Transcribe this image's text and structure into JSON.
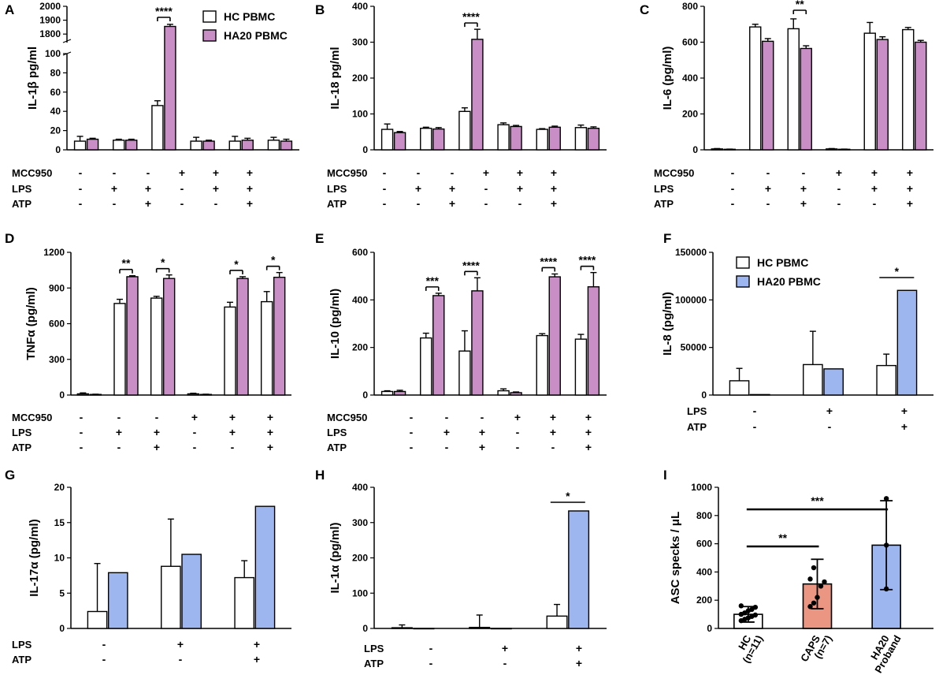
{
  "colors": {
    "hc_fill": "#ffffff",
    "ha20_purple": "#c98ec6",
    "ha20_blue": "#9eb6f0",
    "caps_fill": "#ea9682",
    "stroke": "#000000"
  },
  "chart_data": [
    {
      "id": "A",
      "type": "bar",
      "ylabel": "IL-1β pg/ml",
      "ha20_color": "purple",
      "ylim": [
        0,
        2000
      ],
      "broken_axis": {
        "lower": [
          0,
          100
        ],
        "upper": [
          1750,
          2000
        ]
      },
      "yticks": [
        "0",
        "20",
        "40",
        "60",
        "80",
        "100",
        "1800",
        "1900",
        "2000"
      ],
      "legend": [
        "HC PBMC",
        "HA20 PBMC"
      ],
      "categories": [
        "1",
        "2",
        "3",
        "4",
        "5",
        "6"
      ],
      "series": [
        {
          "name": "HC PBMC",
          "values": [
            9,
            10,
            46,
            9,
            9,
            10
          ],
          "errors": [
            5,
            1,
            5,
            4,
            5,
            3
          ]
        },
        {
          "name": "HA20 PBMC",
          "values": [
            11,
            10,
            1855,
            9,
            10,
            9
          ],
          "errors": [
            1,
            1,
            15,
            1,
            2,
            2
          ]
        }
      ],
      "conditions": [
        {
          "label": "MCC950",
          "marks": [
            "-",
            "-",
            "-",
            "+",
            "+",
            "+"
          ]
        },
        {
          "label": "LPS",
          "marks": [
            "-",
            "+",
            "+",
            "-",
            "+",
            "+"
          ]
        },
        {
          "label": "ATP",
          "marks": [
            "-",
            "-",
            "+",
            "-",
            "-",
            "+"
          ]
        }
      ],
      "significance": [
        {
          "group": 3,
          "label": "****"
        }
      ]
    },
    {
      "id": "B",
      "type": "bar",
      "ylabel": "IL-18 pg/ml",
      "ha20_color": "purple",
      "ylim": [
        0,
        400
      ],
      "yticks": [
        "0",
        "100",
        "200",
        "300",
        "400"
      ],
      "categories": [
        "1",
        "2",
        "3",
        "4",
        "5",
        "6"
      ],
      "series": [
        {
          "name": "HC PBMC",
          "values": [
            57,
            60,
            107,
            70,
            57,
            62
          ],
          "errors": [
            15,
            3,
            10,
            5,
            2,
            7
          ]
        },
        {
          "name": "HA20 PBMC",
          "values": [
            48,
            58,
            308,
            65,
            63,
            60
          ],
          "errors": [
            3,
            4,
            28,
            3,
            3,
            4
          ]
        }
      ],
      "conditions": [
        {
          "label": "MCC950",
          "marks": [
            "-",
            "-",
            "-",
            "+",
            "+",
            "+"
          ]
        },
        {
          "label": "LPS",
          "marks": [
            "-",
            "+",
            "+",
            "-",
            "+",
            "+"
          ]
        },
        {
          "label": "ATP",
          "marks": [
            "-",
            "-",
            "+",
            "-",
            "-",
            "+"
          ]
        }
      ],
      "significance": [
        {
          "group": 3,
          "label": "****"
        }
      ]
    },
    {
      "id": "C",
      "type": "bar",
      "ylabel": "IL-6 (pg/ml)",
      "ha20_color": "purple",
      "ylim": [
        0,
        800
      ],
      "yticks": [
        "0",
        "200",
        "400",
        "600",
        "800"
      ],
      "categories": [
        "1",
        "2",
        "3",
        "4",
        "5",
        "6"
      ],
      "series": [
        {
          "name": "HC PBMC",
          "values": [
            5,
            685,
            675,
            5,
            650,
            670
          ],
          "errors": [
            2,
            15,
            55,
            2,
            60,
            12
          ]
        },
        {
          "name": "HA20 PBMC",
          "values": [
            3,
            605,
            565,
            3,
            615,
            600
          ],
          "errors": [
            1,
            15,
            15,
            1,
            15,
            10
          ]
        }
      ],
      "conditions": [
        {
          "label": "MCC950",
          "marks": [
            "-",
            "-",
            "-",
            "+",
            "+",
            "+"
          ]
        },
        {
          "label": "LPS",
          "marks": [
            "-",
            "+",
            "+",
            "-",
            "+",
            "+"
          ]
        },
        {
          "label": "ATP",
          "marks": [
            "-",
            "-",
            "+",
            "-",
            "-",
            "+"
          ]
        }
      ],
      "significance": [
        {
          "group": 3,
          "label": "**"
        }
      ]
    },
    {
      "id": "D",
      "type": "bar",
      "ylabel": "TNFα (pg/ml)",
      "ha20_color": "purple",
      "ylim": [
        0,
        1200
      ],
      "yticks": [
        "0",
        "300",
        "600",
        "900",
        "1200"
      ],
      "categories": [
        "1",
        "2",
        "3",
        "4",
        "5",
        "6"
      ],
      "series": [
        {
          "name": "HC PBMC",
          "values": [
            10,
            770,
            815,
            10,
            740,
            785
          ],
          "errors": [
            8,
            35,
            15,
            5,
            40,
            85
          ]
        },
        {
          "name": "HA20 PBMC",
          "values": [
            5,
            995,
            980,
            5,
            980,
            990
          ],
          "errors": [
            2,
            8,
            30,
            2,
            15,
            40
          ]
        }
      ],
      "conditions": [
        {
          "label": "MCC950",
          "marks": [
            "-",
            "-",
            "-",
            "+",
            "+",
            "+"
          ]
        },
        {
          "label": "LPS",
          "marks": [
            "-",
            "+",
            "+",
            "-",
            "+",
            "+"
          ]
        },
        {
          "label": "ATP",
          "marks": [
            "-",
            "-",
            "+",
            "-",
            "-",
            "+"
          ]
        }
      ],
      "significance": [
        {
          "group": 2,
          "label": "**"
        },
        {
          "group": 3,
          "label": "*"
        },
        {
          "group": 5,
          "label": "*"
        },
        {
          "group": 6,
          "label": "*"
        }
      ]
    },
    {
      "id": "E",
      "type": "bar",
      "ylabel": "IL-10 (pg/ml)",
      "ha20_color": "purple",
      "ylim": [
        0,
        600
      ],
      "yticks": [
        "0",
        "200",
        "400",
        "600"
      ],
      "categories": [
        "1",
        "2",
        "3",
        "4",
        "5",
        "6"
      ],
      "series": [
        {
          "name": "HC PBMC",
          "values": [
            15,
            240,
            185,
            18,
            250,
            235
          ],
          "errors": [
            3,
            20,
            85,
            8,
            8,
            20
          ]
        },
        {
          "name": "HA20 PBMC",
          "values": [
            15,
            418,
            438,
            10,
            497,
            455
          ],
          "errors": [
            5,
            10,
            55,
            3,
            12,
            60
          ]
        }
      ],
      "conditions": [
        {
          "label": "MCC950",
          "marks": [
            "-",
            "-",
            "-",
            "+",
            "+",
            "+"
          ]
        },
        {
          "label": "LPS",
          "marks": [
            "-",
            "+",
            "+",
            "-",
            "+",
            "+"
          ]
        },
        {
          "label": "ATP",
          "marks": [
            "-",
            "-",
            "+",
            "-",
            "-",
            "+"
          ]
        }
      ],
      "significance": [
        {
          "group": 2,
          "label": "***"
        },
        {
          "group": 3,
          "label": "****"
        },
        {
          "group": 5,
          "label": "****"
        },
        {
          "group": 6,
          "label": "****"
        }
      ]
    },
    {
      "id": "F",
      "type": "bar",
      "ylabel": "IL-8 (pg/ml)",
      "ha20_color": "blue",
      "ylim": [
        0,
        150000
      ],
      "yticks": [
        "0",
        "50000",
        "100000",
        "150000"
      ],
      "legend": [
        "HC PBMC",
        "HA20 PBMC"
      ],
      "categories": [
        "1",
        "2",
        "3"
      ],
      "series": [
        {
          "name": "HC PBMC",
          "values": [
            15000,
            32000,
            31000
          ],
          "errors": [
            13000,
            35000,
            12000
          ]
        },
        {
          "name": "HA20 PBMC",
          "values": [
            500,
            27500,
            110000
          ],
          "errors": [
            0,
            0,
            0
          ]
        }
      ],
      "conditions": [
        {
          "label": "LPS",
          "marks": [
            "-",
            "+",
            "+"
          ]
        },
        {
          "label": "ATP",
          "marks": [
            "-",
            "-",
            "+"
          ]
        }
      ],
      "significance": [
        {
          "group": 3,
          "label": "*"
        }
      ]
    },
    {
      "id": "G",
      "type": "bar",
      "ylabel": "IL-17α (pg/ml)",
      "ha20_color": "blue",
      "ylim": [
        0,
        20
      ],
      "yticks": [
        "0",
        "5",
        "10",
        "15",
        "20"
      ],
      "categories": [
        "1",
        "2",
        "3"
      ],
      "series": [
        {
          "name": "HC PBMC",
          "values": [
            2.4,
            8.8,
            7.2
          ],
          "errors": [
            6.8,
            6.7,
            2.4
          ]
        },
        {
          "name": "HA20 PBMC",
          "values": [
            7.9,
            10.5,
            17.3
          ],
          "errors": [
            0,
            0,
            0
          ]
        }
      ],
      "conditions": [
        {
          "label": "LPS",
          "marks": [
            "-",
            "+",
            "+"
          ]
        },
        {
          "label": "ATP",
          "marks": [
            "-",
            "-",
            "+"
          ]
        }
      ],
      "significance": []
    },
    {
      "id": "H",
      "type": "bar",
      "ylabel": "IL-1α (pg/ml)",
      "ha20_color": "blue",
      "ylim": [
        0,
        400
      ],
      "yticks": [
        "0",
        "100",
        "200",
        "300",
        "400"
      ],
      "categories": [
        "1",
        "2",
        "3"
      ],
      "series": [
        {
          "name": "HC PBMC",
          "values": [
            2,
            3,
            35
          ],
          "errors": [
            8,
            35,
            33
          ]
        },
        {
          "name": "HA20 PBMC",
          "values": [
            0,
            0,
            333
          ],
          "errors": [
            0,
            0,
            0
          ]
        }
      ],
      "conditions": [
        {
          "label": "LPS",
          "marks": [
            "-",
            "+",
            "+"
          ]
        },
        {
          "label": "ATP",
          "marks": [
            "-",
            "-",
            "+"
          ]
        }
      ],
      "significance": [
        {
          "group": 3,
          "label": "*"
        }
      ]
    },
    {
      "id": "I",
      "type": "bar",
      "ylabel": "ASC specks / μL",
      "ylim": [
        0,
        1000
      ],
      "yticks": [
        "0",
        "200",
        "400",
        "600",
        "800",
        "1000"
      ],
      "categories": [
        {
          "lines": [
            "HC",
            "(n=11)"
          ],
          "color_key": "hc_fill"
        },
        {
          "lines": [
            "CAPS",
            "(n=7)"
          ],
          "color_key": "caps_fill"
        },
        {
          "lines": [
            "HA20",
            "Proband"
          ],
          "color_key": "ha20_blue"
        }
      ],
      "values": [
        100,
        315,
        590
      ],
      "errors": [
        55,
        175,
        315
      ],
      "points": [
        [
          55,
          65,
          75,
          85,
          95,
          100,
          110,
          125,
          135,
          150,
          160
        ],
        [
          155,
          180,
          220,
          300,
          330,
          350,
          430
        ],
        [
          280,
          590,
          920
        ]
      ],
      "significance": [
        {
          "from": 1,
          "to": 2,
          "label": "**"
        },
        {
          "from": 1,
          "to": 3,
          "label": "***"
        }
      ]
    }
  ]
}
